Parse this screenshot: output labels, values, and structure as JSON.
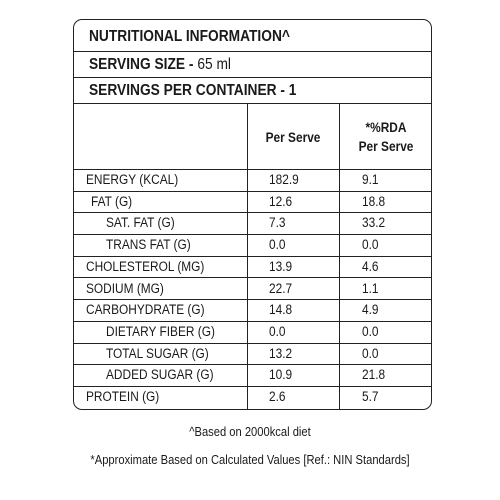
{
  "header": {
    "title": "NUTRITIONAL INFORMATION^",
    "serving_size_label": "SERVING SIZE - ",
    "serving_size_value": "65 ml",
    "servings_per_container": "SERVINGS PER CONTAINER - 1"
  },
  "columns": {
    "per_serve": "Per Serve",
    "rda_line1": "*%RDA",
    "rda_line2": "Per Serve"
  },
  "nutrients": [
    {
      "name": "ENERGY (KCAL)",
      "per_serve": "182.9",
      "rda": "9.1",
      "indent": 0
    },
    {
      "name": "FAT (G)",
      "per_serve": "12.6",
      "rda": "18.8",
      "indent": 1
    },
    {
      "name": "SAT. FAT (G)",
      "per_serve": "7.3",
      "rda": "33.2",
      "indent": 2
    },
    {
      "name": "TRANS FAT (G)",
      "per_serve": "0.0",
      "rda": "0.0",
      "indent": 2
    },
    {
      "name": "CHOLESTEROL (MG)",
      "per_serve": "13.9",
      "rda": "4.6",
      "indent": 0
    },
    {
      "name": "SODIUM (MG)",
      "per_serve": "22.7",
      "rda": "1.1",
      "indent": 0
    },
    {
      "name": "CARBOHYDRATE (G)",
      "per_serve": "14.8",
      "rda": "4.9",
      "indent": 0
    },
    {
      "name": "DIETARY FIBER (G)",
      "per_serve": "0.0",
      "rda": "0.0",
      "indent": 2
    },
    {
      "name": "TOTAL SUGAR (G)",
      "per_serve": "13.2",
      "rda": "0.0",
      "indent": 2
    },
    {
      "name": "ADDED SUGAR (G)",
      "per_serve": "10.9",
      "rda": "21.8",
      "indent": 2
    },
    {
      "name": "PROTEIN (G)",
      "per_serve": "2.6",
      "rda": "5.7",
      "indent": 0
    }
  ],
  "footnotes": {
    "basis": "^Based on 2000kcal diet",
    "approx": "*Approximate Based on Calculated Values  [Ref.: NIN Standards]"
  }
}
